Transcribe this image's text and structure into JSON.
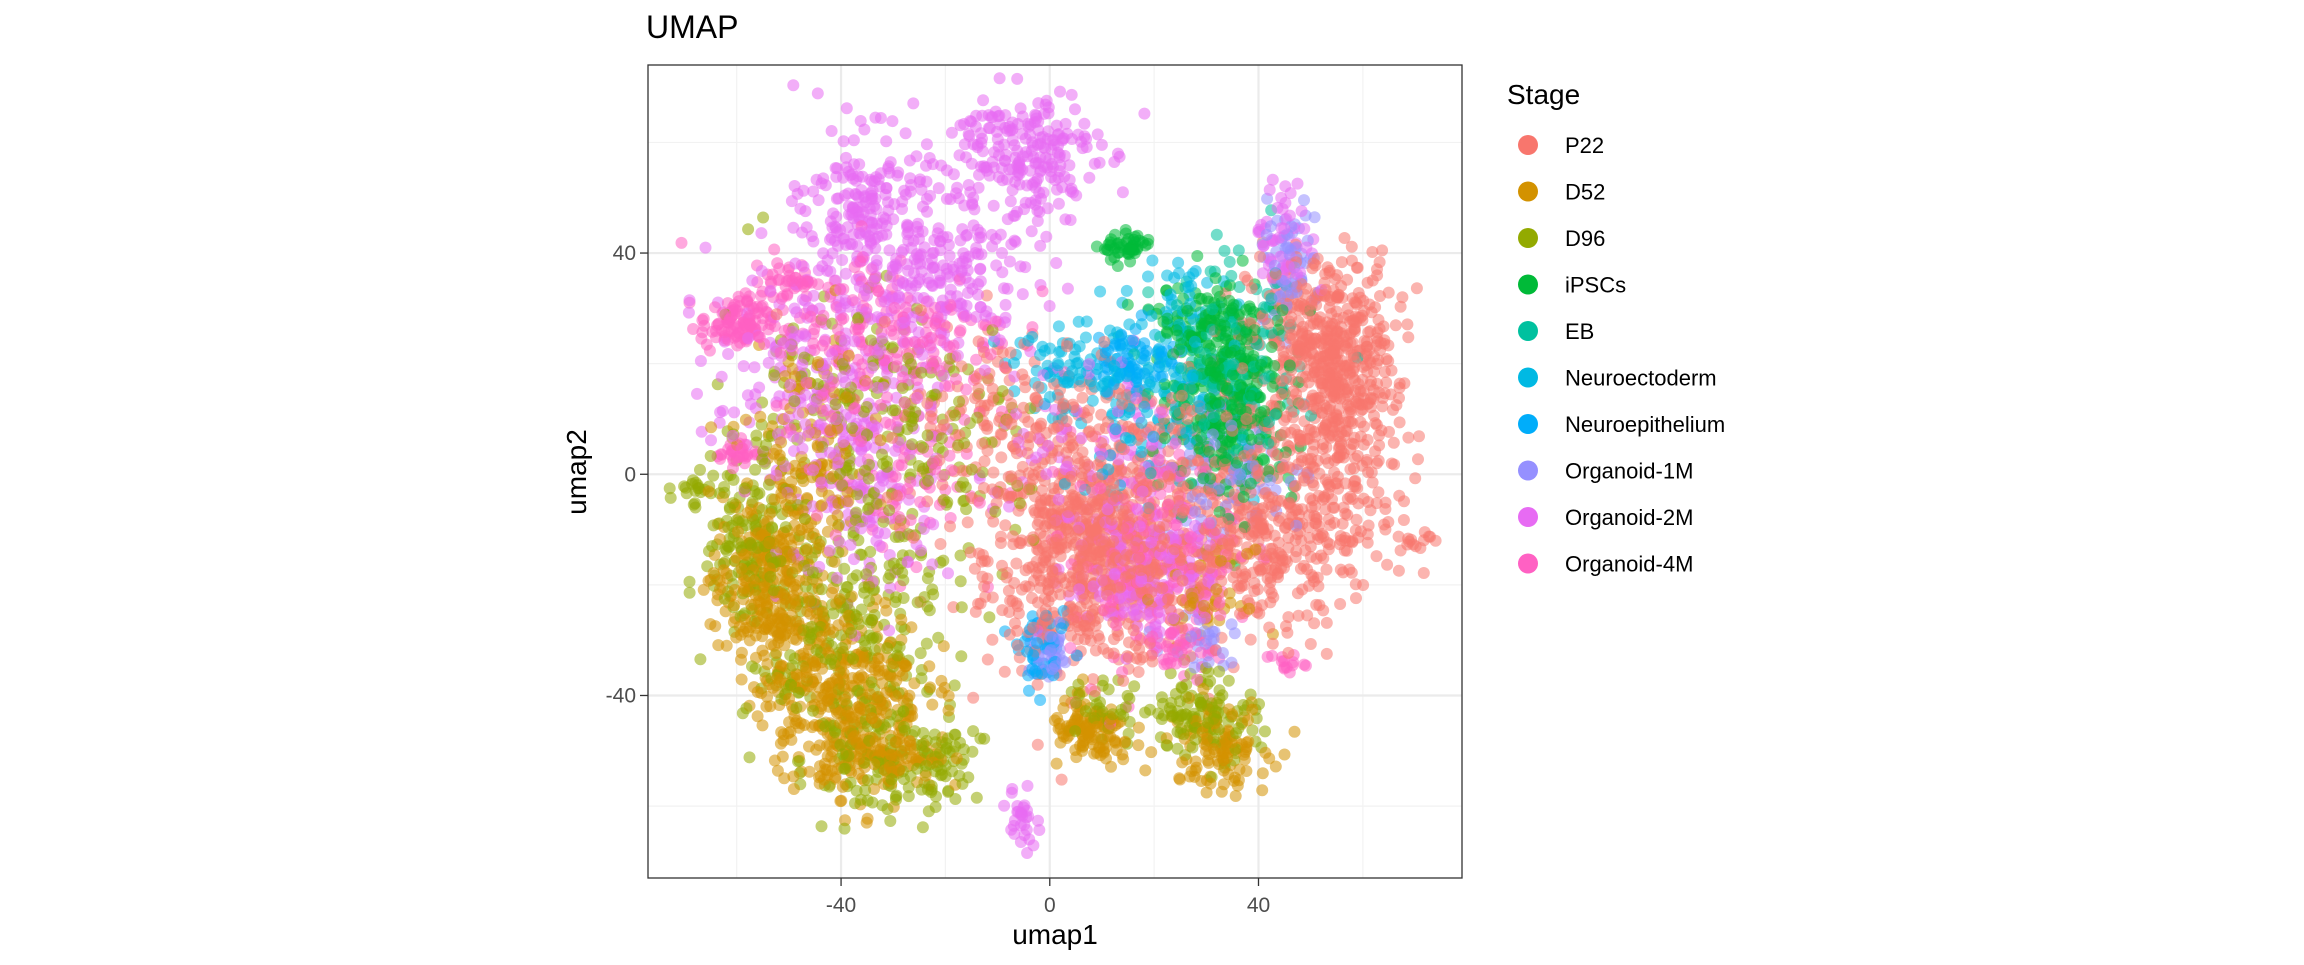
{
  "chart_data": {
    "type": "scatter",
    "title": "UMAP",
    "xlabel": "umap1",
    "ylabel": "umap2",
    "xlim": [
      -77,
      79
    ],
    "ylim": [
      -73,
      74
    ],
    "x_ticks": [
      -40,
      0,
      40
    ],
    "y_ticks": [
      -40,
      0,
      40
    ],
    "x_tick_labels": [
      "-40",
      "0",
      "40"
    ],
    "y_tick_labels": [
      "-40",
      "0",
      "40"
    ],
    "grid": true,
    "legend": {
      "title": "Stage",
      "position": "right"
    },
    "point_alpha": 0.55,
    "series": [
      {
        "name": "P22",
        "color": "#F8766D",
        "clusters": [
          {
            "cx": 8,
            "cy": -15,
            "sx": 10,
            "sy": 10,
            "n": 650
          },
          {
            "cx": 52,
            "cy": 24,
            "sx": 7,
            "sy": 8,
            "n": 380
          },
          {
            "cx": 57,
            "cy": 10,
            "sx": 5,
            "sy": 10,
            "n": 200
          },
          {
            "cx": 42,
            "cy": -15,
            "sx": 10,
            "sy": 7,
            "n": 200
          },
          {
            "cx": 25,
            "cy": -5,
            "sx": 15,
            "sy": 12,
            "n": 320
          },
          {
            "cx": -5,
            "cy": 10,
            "sx": 14,
            "sy": 9,
            "n": 200
          },
          {
            "cx": 70,
            "cy": -12,
            "sx": 1.5,
            "sy": 1,
            "n": 14
          },
          {
            "cx": 48,
            "cy": 0,
            "sx": 8,
            "sy": 8,
            "n": 120
          }
        ]
      },
      {
        "name": "D52",
        "color": "#D39200",
        "clusters": [
          {
            "cx": -55,
            "cy": -20,
            "sx": 5,
            "sy": 8,
            "n": 260
          },
          {
            "cx": -40,
            "cy": -38,
            "sx": 8,
            "sy": 8,
            "n": 360
          },
          {
            "cx": -32,
            "cy": -52,
            "sx": 6,
            "sy": 3,
            "n": 120
          },
          {
            "cx": 8,
            "cy": -47,
            "sx": 4,
            "sy": 3,
            "n": 110
          },
          {
            "cx": 32,
            "cy": -49,
            "sx": 5,
            "sy": 4,
            "n": 110
          },
          {
            "cx": 30,
            "cy": -22,
            "sx": 4,
            "sy": 4,
            "n": 50
          },
          {
            "cx": -46,
            "cy": 0,
            "sx": 6,
            "sy": 12,
            "n": 150
          }
        ]
      },
      {
        "name": "D96",
        "color": "#93AA00",
        "clusters": [
          {
            "cx": -58,
            "cy": -12,
            "sx": 4,
            "sy": 8,
            "n": 120
          },
          {
            "cx": -40,
            "cy": -30,
            "sx": 9,
            "sy": 12,
            "n": 260
          },
          {
            "cx": -30,
            "cy": -50,
            "sx": 7,
            "sy": 6,
            "n": 110
          },
          {
            "cx": -20,
            "cy": -52,
            "sx": 3,
            "sy": 3,
            "n": 40
          },
          {
            "cx": 30,
            "cy": -43,
            "sx": 5,
            "sy": 4,
            "n": 120
          },
          {
            "cx": 10,
            "cy": -43,
            "sx": 4,
            "sy": 3,
            "n": 40
          },
          {
            "cx": -68,
            "cy": -3,
            "sx": 2,
            "sy": 1.5,
            "n": 18
          },
          {
            "cx": -40,
            "cy": 10,
            "sx": 12,
            "sy": 12,
            "n": 180
          },
          {
            "cx": -20,
            "cy": 0,
            "sx": 8,
            "sy": 10,
            "n": 80
          }
        ]
      },
      {
        "name": "iPSCs",
        "color": "#00BA38",
        "clusters": [
          {
            "cx": 35,
            "cy": 14,
            "sx": 6,
            "sy": 9,
            "n": 330
          },
          {
            "cx": 15,
            "cy": 41,
            "sx": 2.5,
            "sy": 1.2,
            "n": 50
          },
          {
            "cx": 30,
            "cy": 28,
            "sx": 5,
            "sy": 3,
            "n": 80
          }
        ]
      },
      {
        "name": "EB",
        "color": "#00C19F",
        "clusters": [
          {
            "cx": 34,
            "cy": 18,
            "sx": 7,
            "sy": 9,
            "n": 160
          }
        ]
      },
      {
        "name": "Neuroectoderm",
        "color": "#00B9E3",
        "clusters": [
          {
            "cx": 20,
            "cy": 12,
            "sx": 8,
            "sy": 8,
            "n": 120
          },
          {
            "cx": 5,
            "cy": 18,
            "sx": 7,
            "sy": 4,
            "n": 80
          },
          {
            "cx": 25,
            "cy": 32,
            "sx": 5,
            "sy": 4,
            "n": 40
          }
        ]
      },
      {
        "name": "Neuroepithelium",
        "color": "#00ADFA",
        "clusters": [
          {
            "cx": 16,
            "cy": 21,
            "sx": 4,
            "sy": 3,
            "n": 70
          },
          {
            "cx": -1,
            "cy": -32,
            "sx": 2.5,
            "sy": 3,
            "n": 50
          }
        ]
      },
      {
        "name": "Organoid-1M",
        "color": "#9590FF",
        "clusters": [
          {
            "cx": 0,
            "cy": -33,
            "sx": 2,
            "sy": 2.5,
            "n": 40
          },
          {
            "cx": 35,
            "cy": 0,
            "sx": 7,
            "sy": 6,
            "n": 80
          },
          {
            "cx": 45,
            "cy": 38,
            "sx": 3,
            "sy": 5,
            "n": 60
          },
          {
            "cx": 30,
            "cy": -30,
            "sx": 4,
            "sy": 3,
            "n": 30
          }
        ]
      },
      {
        "name": "Organoid-2M",
        "color": "#E76BF3",
        "clusters": [
          {
            "cx": -5,
            "cy": 58,
            "sx": 7,
            "sy": 6,
            "n": 220
          },
          {
            "cx": -35,
            "cy": 48,
            "sx": 6,
            "sy": 7,
            "n": 200
          },
          {
            "cx": -20,
            "cy": 35,
            "sx": 9,
            "sy": 7,
            "n": 200
          },
          {
            "cx": -45,
            "cy": 18,
            "sx": 10,
            "sy": 10,
            "n": 220
          },
          {
            "cx": 20,
            "cy": -18,
            "sx": 6,
            "sy": 6,
            "n": 160
          },
          {
            "cx": -5,
            "cy": -62,
            "sx": 1.5,
            "sy": 3,
            "n": 30
          },
          {
            "cx": 45,
            "cy": 42,
            "sx": 3,
            "sy": 5,
            "n": 60
          },
          {
            "cx": -35,
            "cy": -5,
            "sx": 8,
            "sy": 10,
            "n": 120
          },
          {
            "cx": 10,
            "cy": 0,
            "sx": 10,
            "sy": 10,
            "n": 120
          }
        ]
      },
      {
        "name": "Organoid-4M",
        "color": "#FF61C3",
        "clusters": [
          {
            "cx": -60,
            "cy": 27,
            "sx": 3.5,
            "sy": 2.5,
            "n": 110
          },
          {
            "cx": -50,
            "cy": 35,
            "sx": 2.5,
            "sy": 1.5,
            "n": 40
          },
          {
            "cx": -60,
            "cy": 4,
            "sx": 2,
            "sy": 1.2,
            "n": 30
          },
          {
            "cx": -30,
            "cy": 25,
            "sx": 12,
            "sy": 8,
            "n": 200
          },
          {
            "cx": 20,
            "cy": -15,
            "sx": 8,
            "sy": 10,
            "n": 180
          },
          {
            "cx": 45,
            "cy": -34,
            "sx": 2,
            "sy": 1,
            "n": 14
          },
          {
            "cx": 25,
            "cy": -32,
            "sx": 3,
            "sy": 2,
            "n": 30
          },
          {
            "cx": -30,
            "cy": 0,
            "sx": 8,
            "sy": 8,
            "n": 80
          }
        ]
      }
    ]
  }
}
